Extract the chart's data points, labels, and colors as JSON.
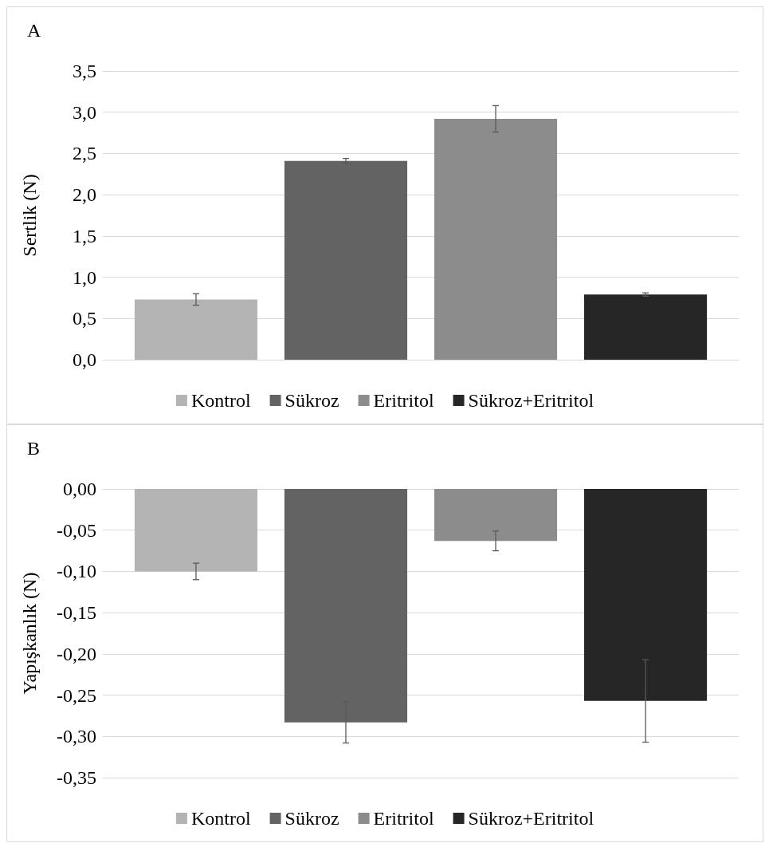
{
  "chart_data": [
    {
      "type": "bar",
      "title": "A",
      "ylabel": "Sertlik (N)",
      "categories": [
        null
      ],
      "ylim": [
        0,
        3.5
      ],
      "yticks": [
        {
          "value": 0,
          "label": "0,0"
        },
        {
          "value": 0.5,
          "label": "0,5"
        },
        {
          "value": 1,
          "label": "1,0"
        },
        {
          "value": 1.5,
          "label": "1,5"
        },
        {
          "value": 2,
          "label": "2,0"
        },
        {
          "value": 2.5,
          "label": "2,5"
        },
        {
          "value": 3,
          "label": "3,0"
        },
        {
          "value": 3.5,
          "label": "3,5"
        }
      ],
      "grid": "y",
      "legend": "bottom",
      "series": [
        {
          "name": "Kontrol",
          "color": "#b4b4b4",
          "values": [
            0.73
          ],
          "errors": [
            0.07
          ]
        },
        {
          "name": "Sükroz",
          "color": "#636363",
          "values": [
            2.41
          ],
          "errors": [
            0.03
          ]
        },
        {
          "name": "Eritritol",
          "color": "#8c8c8c",
          "values": [
            2.92
          ],
          "errors": [
            0.16
          ]
        },
        {
          "name": "Sükroz+Eritritol",
          "color": "#262626",
          "values": [
            0.79
          ],
          "errors": [
            0.02
          ]
        }
      ]
    },
    {
      "type": "bar",
      "title": "B",
      "ylabel": "Yapışkanlık (N)",
      "categories": [
        null
      ],
      "ylim": [
        -0.35,
        0
      ],
      "yticks": [
        {
          "value": -0.35,
          "label": "-0,35"
        },
        {
          "value": -0.3,
          "label": "-0,30"
        },
        {
          "value": -0.25,
          "label": "-0,25"
        },
        {
          "value": -0.2,
          "label": "-0,20"
        },
        {
          "value": -0.15,
          "label": "-0,15"
        },
        {
          "value": -0.1,
          "label": "-0,10"
        },
        {
          "value": -0.05,
          "label": "-0,05"
        },
        {
          "value": 0,
          "label": "0,00"
        }
      ],
      "grid": "y",
      "legend": "bottom",
      "series": [
        {
          "name": "Kontrol",
          "color": "#b4b4b4",
          "values": [
            -0.1
          ],
          "errors": [
            0.01
          ]
        },
        {
          "name": "Sükroz",
          "color": "#636363",
          "values": [
            -0.283
          ],
          "errors": [
            0.025
          ]
        },
        {
          "name": "Eritritol",
          "color": "#8c8c8c",
          "values": [
            -0.063
          ],
          "errors": [
            0.012
          ]
        },
        {
          "name": "Sükroz+Eritritol",
          "color": "#262626",
          "values": [
            -0.257
          ],
          "errors": [
            0.05
          ]
        }
      ]
    }
  ]
}
